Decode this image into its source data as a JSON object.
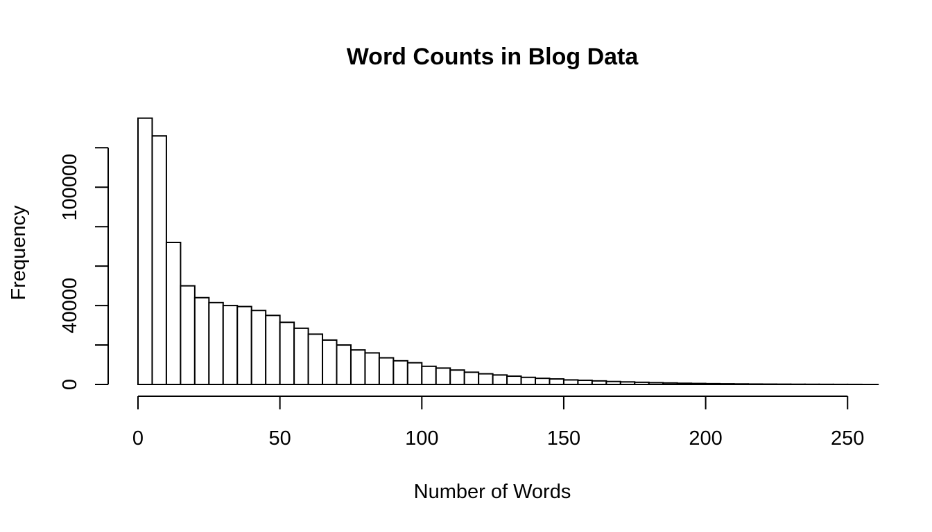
{
  "chart_data": {
    "type": "bar",
    "title": "Word Counts in Blog Data",
    "xlabel": "Number of Words",
    "ylabel": "Frequency",
    "xlim": [
      0,
      260
    ],
    "ylim": [
      0,
      135000
    ],
    "x_ticks": [
      0,
      50,
      100,
      150,
      200,
      250
    ],
    "x_tick_labels": [
      "0",
      "50",
      "100",
      "150",
      "200",
      "250"
    ],
    "y_ticks": [
      0,
      20000,
      40000,
      60000,
      80000,
      100000,
      120000
    ],
    "y_tick_labels": [
      "0",
      "",
      "40000",
      "",
      "",
      "100000",
      ""
    ],
    "bin_width": 5,
    "bin_edges_start": 0,
    "values": [
      135000,
      126000,
      72000,
      50000,
      44000,
      41500,
      40000,
      39500,
      37500,
      35000,
      31500,
      28500,
      25500,
      22500,
      20000,
      17500,
      16000,
      13500,
      12000,
      11000,
      9200,
      8300,
      7300,
      6200,
      5400,
      4800,
      4200,
      3600,
      3100,
      2800,
      2300,
      2100,
      1800,
      1500,
      1300,
      1100,
      900,
      750,
      600,
      500,
      400,
      320,
      260,
      200,
      160,
      130,
      100,
      80,
      60,
      40,
      30
    ],
    "grid": false,
    "legend": "none"
  }
}
